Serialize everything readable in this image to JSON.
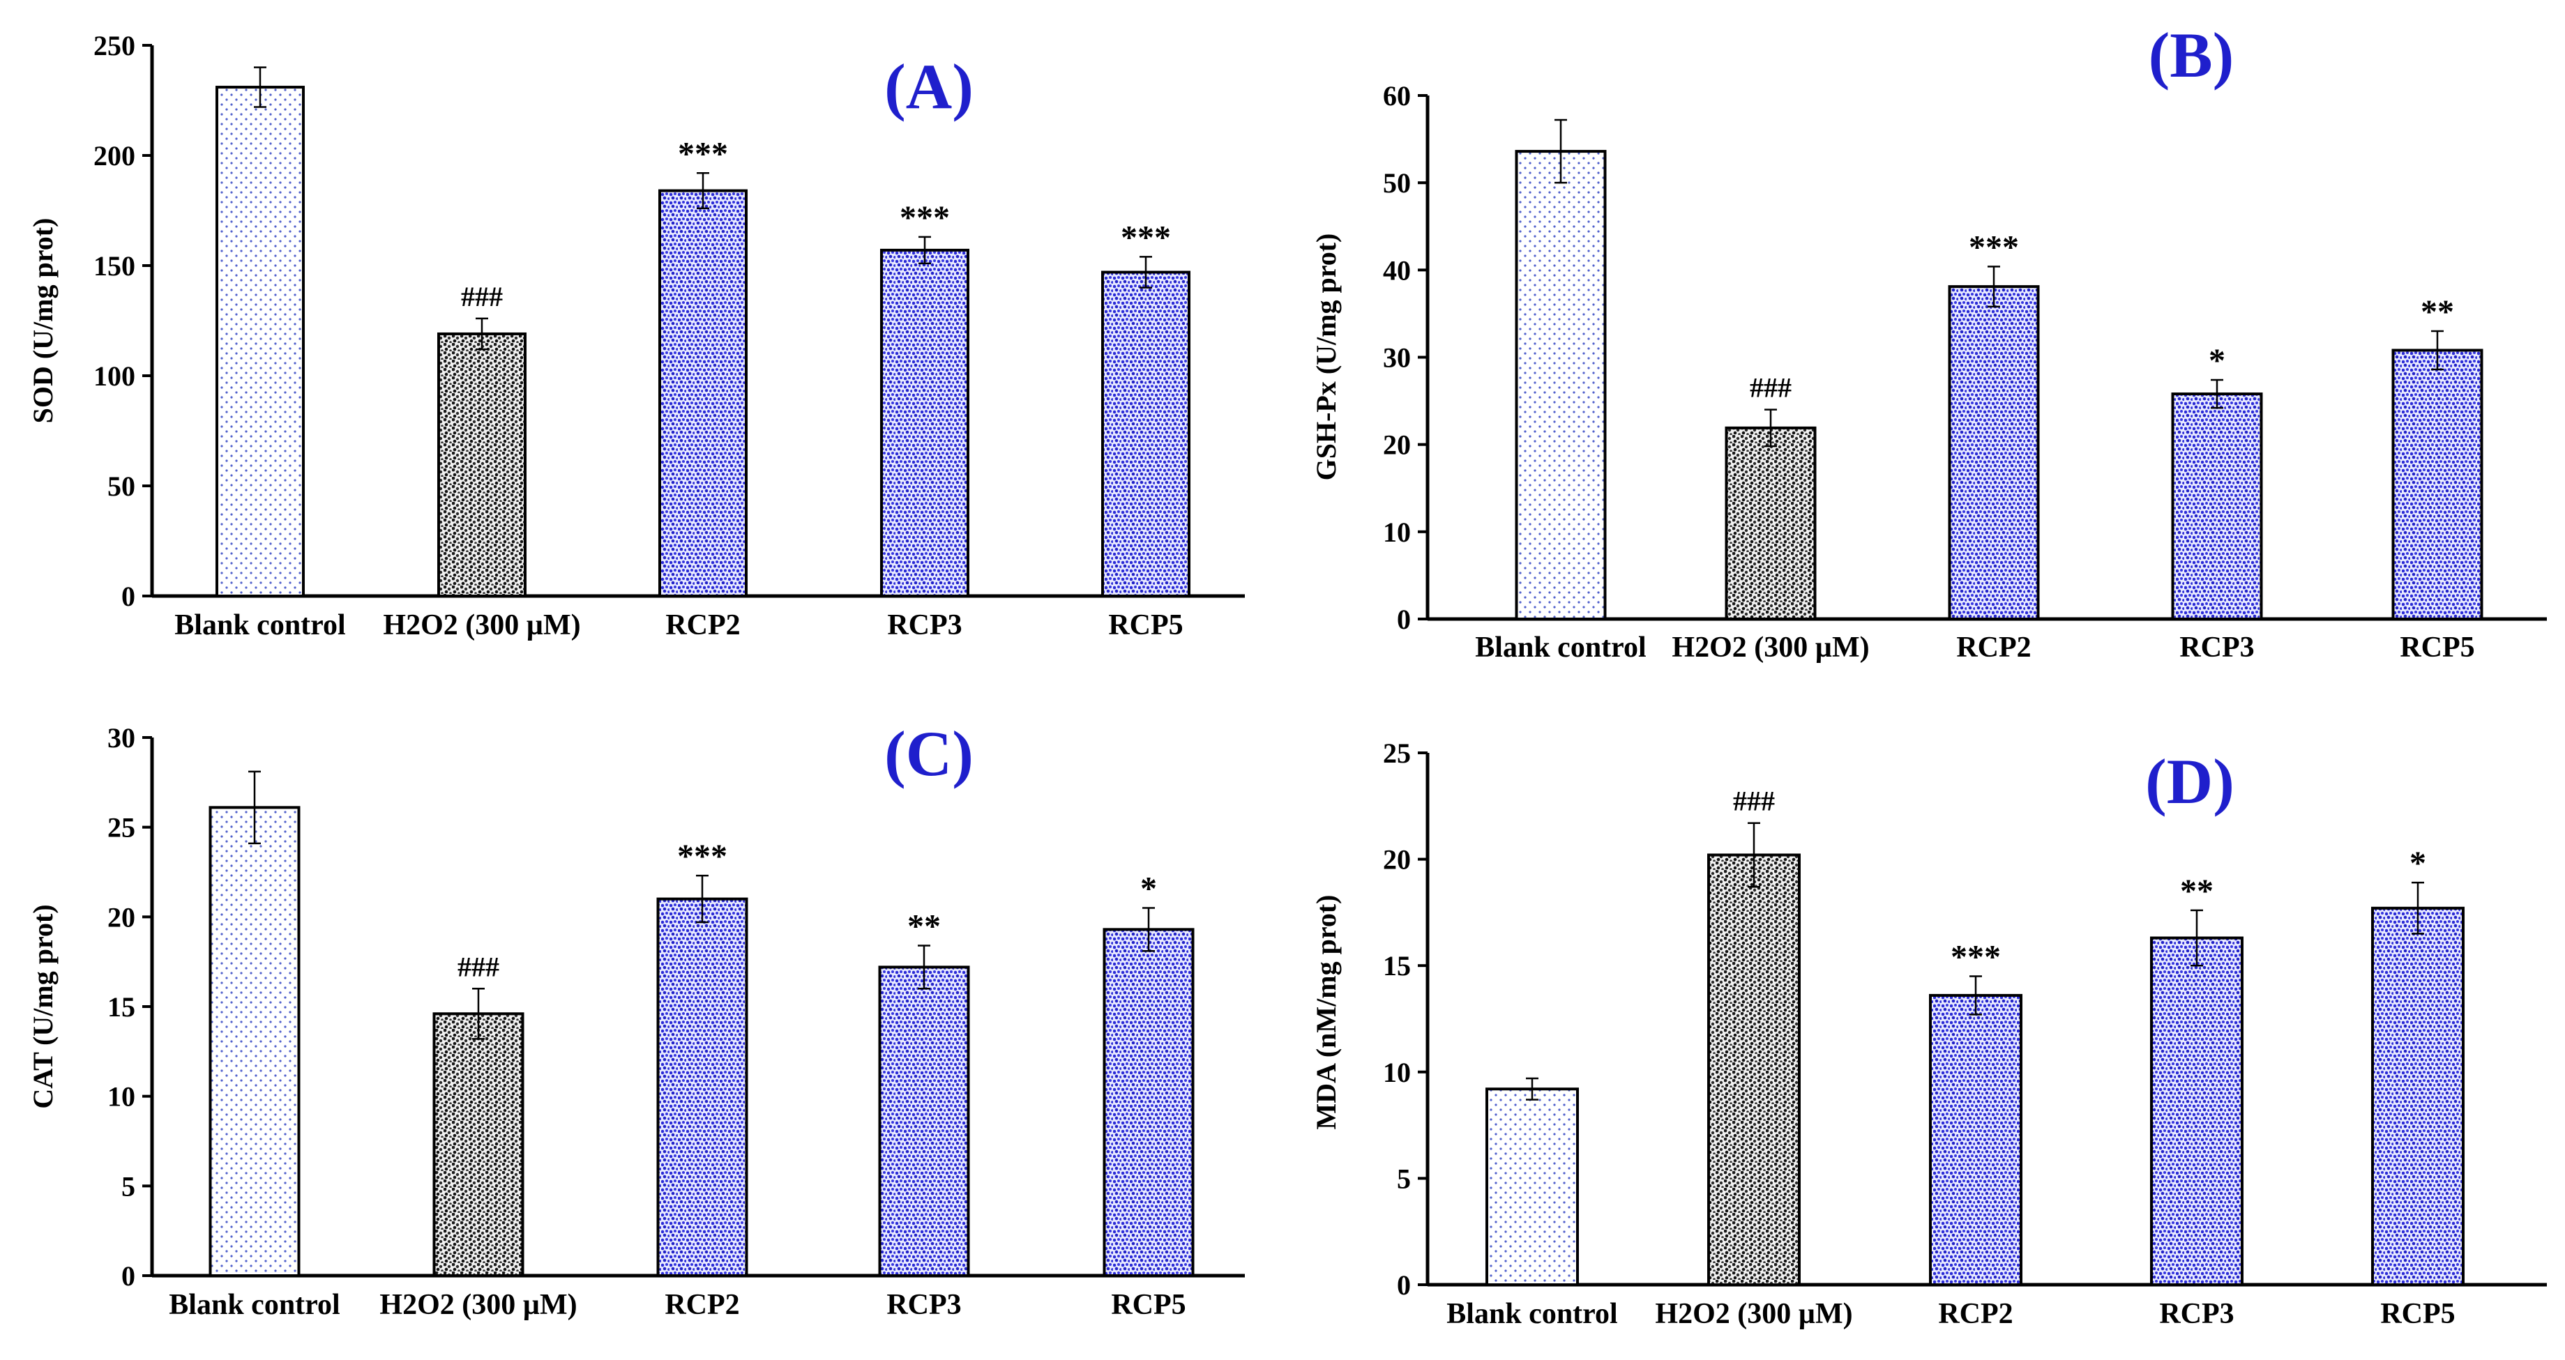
{
  "colors": {
    "blank_dot": "#5060cc",
    "h2o2_dot": "#222222",
    "rcp_dot": "#2a2ad6",
    "panel_label": "#1f1fcc",
    "axis": "#000000"
  },
  "chart_data": [
    {
      "type": "bar",
      "panel_label": "(A)",
      "ylabel": "SOD (U/mg prot)",
      "ylim": [
        0,
        250
      ],
      "yticks": [
        "0",
        "50",
        "100",
        "150",
        "200",
        "250"
      ],
      "yticks_values": [
        0,
        50,
        100,
        150,
        200,
        250
      ],
      "categories": [
        "Blank control",
        "H2O2 (300 µM)",
        "RCP2",
        "RCP3",
        "RCP5"
      ],
      "values": [
        231,
        119,
        184,
        157,
        147
      ],
      "errors": [
        9,
        7,
        8,
        6,
        7
      ],
      "annotations": [
        "",
        "###",
        "***",
        "***",
        "***"
      ]
    },
    {
      "type": "bar",
      "panel_label": "(B)",
      "ylabel": "GSH-Px (U/mg prot)",
      "ylim": [
        0,
        60
      ],
      "yticks": [
        "0",
        "10",
        "20",
        "30",
        "40",
        "50",
        "60"
      ],
      "yticks_values": [
        0,
        10,
        20,
        30,
        40,
        50,
        60
      ],
      "categories": [
        "Blank control",
        "H2O2 (300 µM)",
        "RCP2",
        "RCP3",
        "RCP5"
      ],
      "values": [
        53.6,
        21.9,
        38.1,
        25.8,
        30.8
      ],
      "errors": [
        3.6,
        2.1,
        2.3,
        1.6,
        2.2
      ],
      "annotations": [
        "",
        "###",
        "***",
        "*",
        "**"
      ]
    },
    {
      "type": "bar",
      "panel_label": "(C)",
      "ylabel": "CAT (U/mg prot)",
      "ylim": [
        0,
        30
      ],
      "yticks": [
        "0",
        "5",
        "10",
        "15",
        "20",
        "25",
        "30"
      ],
      "yticks_values": [
        0,
        5,
        10,
        15,
        20,
        25,
        30
      ],
      "categories": [
        "Blank control",
        "H2O2 (300 µM)",
        "RCP2",
        "RCP3",
        "RCP5"
      ],
      "values": [
        26.1,
        14.6,
        21.0,
        17.2,
        19.3
      ],
      "errors": [
        2.0,
        1.4,
        1.3,
        1.2,
        1.2
      ],
      "annotations": [
        "",
        "###",
        "***",
        "**",
        "*"
      ]
    },
    {
      "type": "bar",
      "panel_label": "(D)",
      "ylabel": "MDA (nM/mg prot)",
      "ylim": [
        0,
        25
      ],
      "yticks": [
        "0",
        "5",
        "10",
        "15",
        "20",
        "25"
      ],
      "yticks_values": [
        0,
        5,
        10,
        15,
        20,
        25
      ],
      "categories": [
        "Blank control",
        "H2O2 (300 µM)",
        "RCP2",
        "RCP3",
        "RCP5"
      ],
      "values": [
        9.2,
        20.2,
        13.6,
        16.3,
        17.7
      ],
      "errors": [
        0.5,
        1.5,
        0.9,
        1.3,
        1.2
      ],
      "annotations": [
        "",
        "###",
        "***",
        "**",
        "*"
      ]
    }
  ]
}
